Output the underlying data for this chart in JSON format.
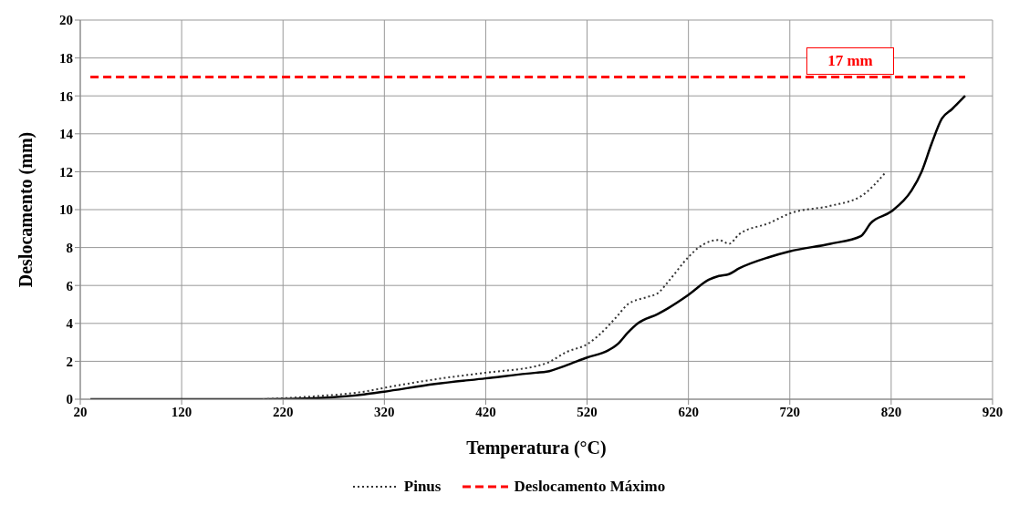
{
  "chart_data": {
    "type": "line",
    "xlabel": "Temperatura (°C)",
    "ylabel": "Deslocamento (mm)",
    "xlim": [
      20,
      920
    ],
    "xticks": [
      20,
      120,
      220,
      320,
      420,
      520,
      620,
      720,
      820,
      920
    ],
    "ylim": [
      0,
      20
    ],
    "yticks": [
      0,
      2,
      4,
      6,
      8,
      10,
      12,
      14,
      16,
      18,
      20
    ],
    "grid": true,
    "legend": "bottom",
    "marker": "none",
    "series": [
      {
        "color": "#000000",
        "line_style": "solid",
        "x": [
          30,
          200,
          250,
          300,
          320,
          370,
          420,
          470,
          480,
          500,
          520,
          540,
          550,
          560,
          570,
          590,
          600,
          620,
          640,
          650,
          660,
          670,
          700,
          720,
          760,
          790,
          800,
          820,
          840,
          850,
          860,
          870,
          880,
          893
        ],
        "values": [
          0,
          0,
          0.05,
          0.25,
          0.4,
          0.8,
          1.1,
          1.4,
          1.45,
          1.8,
          2.2,
          2.55,
          2.9,
          3.5,
          4.0,
          4.5,
          4.8,
          5.5,
          6.3,
          6.5,
          6.6,
          6.9,
          7.5,
          7.8,
          8.2,
          8.6,
          9.3,
          9.9,
          11.0,
          12.0,
          13.5,
          14.8,
          15.3,
          16.0
        ]
      },
      {
        "name": "Pinus",
        "color": "#333333",
        "line_style": "dotted",
        "x": [
          200,
          250,
          300,
          320,
          370,
          420,
          470,
          480,
          500,
          520,
          530,
          550,
          560,
          580,
          590,
          600,
          620,
          630,
          650,
          660,
          670,
          700,
          720,
          760,
          790,
          815
        ],
        "values": [
          0,
          0.15,
          0.4,
          0.6,
          1.05,
          1.4,
          1.75,
          1.9,
          2.5,
          2.9,
          3.3,
          4.4,
          5.0,
          5.4,
          5.6,
          6.2,
          7.5,
          8.0,
          8.4,
          8.2,
          8.7,
          9.3,
          9.8,
          10.2,
          10.7,
          12.0
        ]
      },
      {
        "name": "Deslocamento Máximo",
        "color": "#ff0000",
        "line_style": "dashed",
        "x": [
          30,
          893
        ],
        "values": [
          17,
          17
        ]
      }
    ],
    "annotations": [
      "17 mm"
    ]
  }
}
